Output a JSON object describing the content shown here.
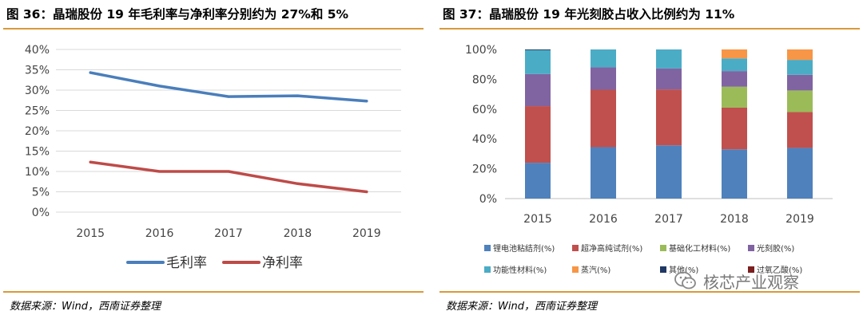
{
  "left": {
    "title": "图 36：晶瑞股份 19 年毛利率与净利率分别约为 27%和 5%",
    "source": "数据来源：Wind，西南证券整理"
  },
  "right": {
    "title": "图 37：晶瑞股份 19 年光刻胶占收入比例约为 11%",
    "source": "数据来源：Wind，西南证券整理"
  },
  "watermark": {
    "text": "核芯产业观察",
    "icon": "wechat-icon"
  },
  "chart_data": [
    {
      "type": "line",
      "title": "",
      "x": [
        "2015",
        "2016",
        "2017",
        "2018",
        "2019"
      ],
      "ylim": [
        0,
        40
      ],
      "yticks": [
        "0%",
        "5%",
        "10%",
        "15%",
        "20%",
        "25%",
        "30%",
        "35%",
        "40%"
      ],
      "grid": true,
      "legend": "bottom",
      "series": [
        {
          "name": "毛利率",
          "color": "#4a7ebb",
          "values": [
            34.3,
            31.0,
            28.4,
            28.6,
            27.3
          ]
        },
        {
          "name": "净利率",
          "color": "#be4b48",
          "values": [
            12.3,
            10.0,
            10.0,
            7.0,
            5.0
          ]
        }
      ]
    },
    {
      "type": "bar",
      "stacked": true,
      "title": "",
      "categories": [
        "2015",
        "2016",
        "2017",
        "2018",
        "2019"
      ],
      "ylim": [
        0,
        100
      ],
      "yticks": [
        "0%",
        "20%",
        "40%",
        "60%",
        "80%",
        "100%"
      ],
      "legend": "bottom",
      "series": [
        {
          "name": "锂电池粘结剂(%)",
          "color": "#4f81bd",
          "values": [
            24,
            34.5,
            35.7,
            33,
            34
          ]
        },
        {
          "name": "超净高纯试剂(%)",
          "color": "#c0504d",
          "values": [
            38,
            38.5,
            37.5,
            28,
            24
          ]
        },
        {
          "name": "基础化工材料(%)",
          "color": "#9bbb59",
          "values": [
            0,
            0,
            0,
            14,
            14.5
          ]
        },
        {
          "name": "光刻胶(%)",
          "color": "#8064a2",
          "values": [
            21.5,
            15,
            14,
            10.5,
            10.5
          ]
        },
        {
          "name": "功能性材料(%)",
          "color": "#4bacc6",
          "values": [
            16,
            12,
            12.8,
            8.5,
            10
          ]
        },
        {
          "name": "蒸汽(%)",
          "color": "#f79646",
          "values": [
            0,
            0,
            0,
            6,
            7
          ]
        },
        {
          "name": "其他(%)",
          "color": "#1f3864",
          "values": [
            0.5,
            0,
            0,
            0,
            0
          ]
        },
        {
          "name": "过氧乙酸(%)",
          "color": "#7b1f1f",
          "values": [
            0,
            0,
            0,
            0,
            0
          ]
        }
      ]
    }
  ]
}
